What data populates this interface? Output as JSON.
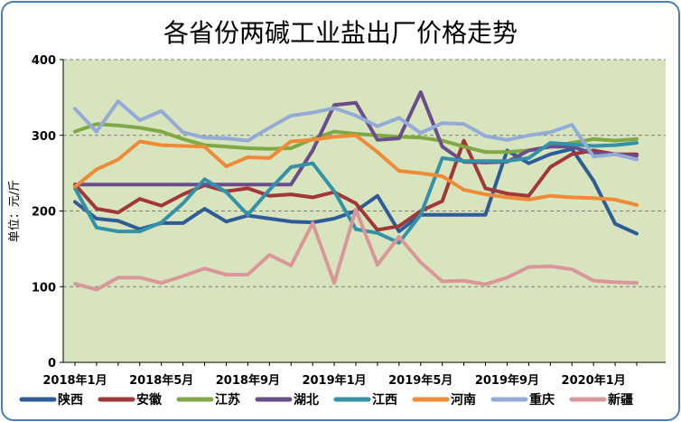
{
  "chart_data": {
    "type": "line",
    "title": "各省份两碱工业盐出厂价格走势",
    "ylabel": "单位：元/斤",
    "ylim": [
      0,
      400
    ],
    "yticks": [
      0,
      100,
      200,
      300,
      400
    ],
    "grid": true,
    "legend_position": "bottom",
    "x_tick_labels": [
      "2018年1月",
      "2018年5月",
      "2018年9月",
      "2019年1月",
      "2019年5月",
      "2019年9月",
      "2020年1月"
    ],
    "x_tick_positions": [
      0,
      4,
      8,
      12,
      16,
      20,
      24
    ],
    "x_count": 27,
    "colors": {
      "plot_background": "#d7e4bd",
      "grid": "#7f7f7f",
      "frame": "#4a7ebb"
    },
    "series": [
      {
        "name": "陕西",
        "color": "#2e5c96",
        "values": [
          212,
          190,
          187,
          176,
          184,
          184,
          203,
          186,
          194,
          190,
          186,
          185,
          190,
          200,
          220,
          173,
          195,
          195,
          195,
          195,
          280,
          263,
          275,
          282,
          240,
          183,
          170
        ]
      },
      {
        "name": "安徽",
        "color": "#a0383a",
        "values": [
          235,
          203,
          198,
          216,
          207,
          222,
          234,
          226,
          230,
          220,
          222,
          218,
          225,
          210,
          175,
          180,
          200,
          213,
          293,
          230,
          223,
          220,
          258,
          275,
          280,
          275,
          275
        ]
      },
      {
        "name": "江苏",
        "color": "#80a844",
        "values": [
          305,
          315,
          313,
          310,
          305,
          295,
          287,
          285,
          283,
          282,
          283,
          295,
          305,
          302,
          300,
          298,
          297,
          293,
          285,
          278,
          278,
          280,
          285,
          290,
          295,
          293,
          295
        ]
      },
      {
        "name": "湖北",
        "color": "#6a4e8c",
        "values": [
          235,
          235,
          235,
          235,
          235,
          235,
          235,
          235,
          235,
          235,
          235,
          280,
          340,
          343,
          294,
          296,
          357,
          285,
          265,
          264,
          265,
          280,
          285,
          285,
          276,
          275,
          273
        ]
      },
      {
        "name": "江西",
        "color": "#3392a8",
        "values": [
          230,
          178,
          173,
          173,
          185,
          210,
          242,
          225,
          195,
          228,
          258,
          263,
          226,
          176,
          171,
          158,
          195,
          270,
          266,
          266,
          266,
          270,
          290,
          288,
          286,
          287,
          290
        ]
      },
      {
        "name": "河南",
        "color": "#ef8a37",
        "values": [
          232,
          255,
          268,
          292,
          287,
          286,
          285,
          259,
          271,
          270,
          292,
          294,
          298,
          300,
          278,
          253,
          250,
          246,
          228,
          222,
          218,
          215,
          220,
          218,
          217,
          215,
          208
        ]
      },
      {
        "name": "重庆",
        "color": "#93abd6",
        "values": [
          335,
          305,
          345,
          320,
          332,
          304,
          297,
          296,
          293,
          310,
          326,
          330,
          336,
          326,
          312,
          323,
          303,
          316,
          315,
          299,
          294,
          300,
          304,
          314,
          272,
          275,
          268
        ]
      },
      {
        "name": "新疆",
        "color": "#d99799",
        "values": [
          104,
          96,
          112,
          112,
          105,
          114,
          124,
          116,
          116,
          142,
          128,
          184,
          105,
          202,
          129,
          166,
          132,
          107,
          108,
          103,
          112,
          126,
          127,
          123,
          108,
          106,
          105
        ]
      }
    ]
  }
}
